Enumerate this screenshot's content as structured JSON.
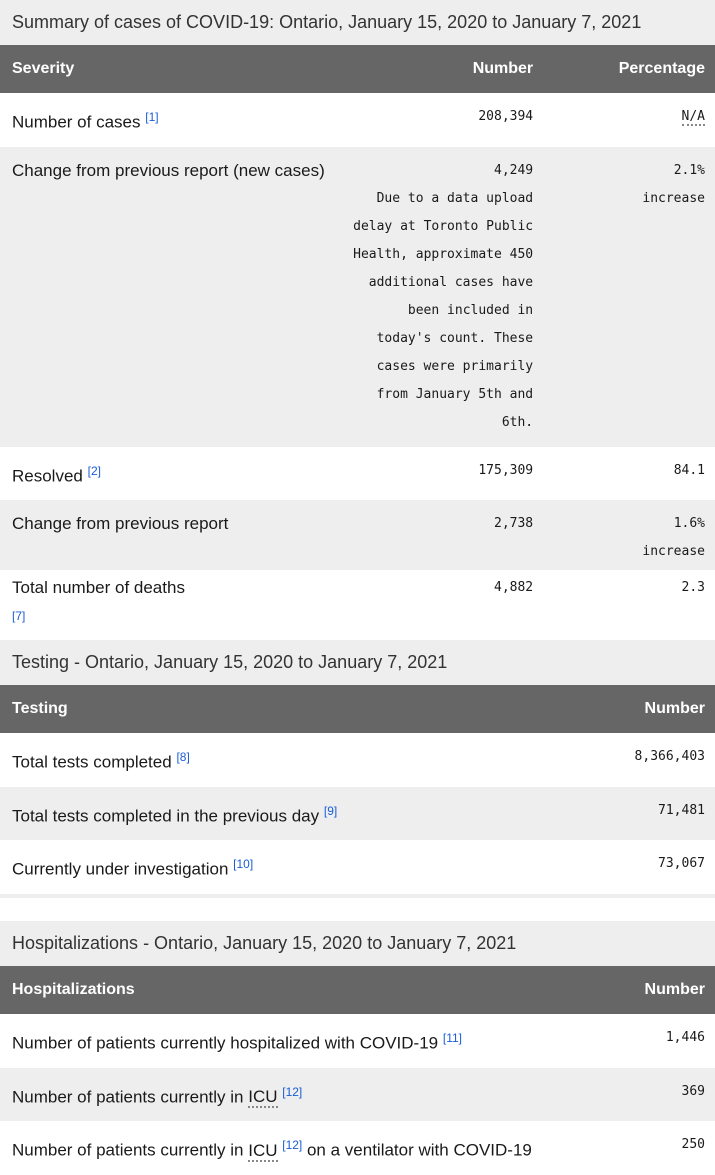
{
  "summary": {
    "caption": "Summary of cases of COVID-19: Ontario, January 15, 2020 to January 7, 2021",
    "headers": [
      "Severity",
      "Number",
      "Percentage"
    ],
    "rows": [
      {
        "label": "Number of cases",
        "ref": "[1]",
        "number": "208,394",
        "pct": "N/A"
      },
      {
        "label": "Change from previous report (new cases)",
        "number": "4,249",
        "note": "Due to a data upload delay at Toronto Public Health, approximate 450 additional cases have been included in today's count. These cases were primarily from January 5th and 6th.",
        "pct": "2.1%",
        "pct_note": "increase"
      },
      {
        "label": "Resolved",
        "ref": "[2]",
        "number": "175,309",
        "pct": "84.1"
      },
      {
        "label": "Change from previous report",
        "number": "2,738",
        "pct": "1.6%",
        "pct_note": "increase"
      },
      {
        "label": "Total number of deaths",
        "ref": "[7]",
        "number": "4,882",
        "pct": "2.3"
      }
    ]
  },
  "testing": {
    "caption": "Testing - Ontario, January 15, 2020 to January 7, 2021",
    "headers": [
      "Testing",
      "Number"
    ],
    "rows": [
      {
        "label": "Total tests completed",
        "ref": "[8]",
        "number": "8,366,403"
      },
      {
        "label": "Total tests completed in the previous day",
        "ref": "[9]",
        "number": "71,481"
      },
      {
        "label": "Currently under investigation",
        "ref": "[10]",
        "number": "73,067"
      }
    ]
  },
  "hosp": {
    "caption": "Hospitalizations - Ontario, January 15, 2020 to January 7, 2021",
    "headers": [
      "Hospitalizations",
      "Number"
    ],
    "rows": [
      {
        "label": "Number of patients currently hospitalized with COVID-19",
        "ref": "[11]",
        "number": "1,446"
      },
      {
        "label_a": "Number of patients currently in ",
        "abbr": "ICU",
        "ref": "[12]",
        "number": "369"
      },
      {
        "label_a": "Number of patients currently in ",
        "abbr": "ICU",
        "ref": "[12]",
        "label_b": " on a ventilator with COVID-19",
        "number": "250"
      }
    ]
  }
}
